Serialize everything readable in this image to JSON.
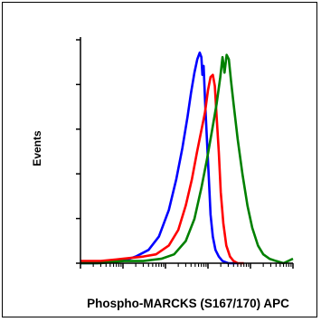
{
  "chart_data": {
    "type": "line",
    "title": "",
    "xlabel": "Phospho-MARCKS (S167/170) APC",
    "ylabel": "Events",
    "x_scale": "log",
    "xlim": [
      1,
      100000
    ],
    "ylim": [
      0,
      100
    ],
    "grid": false,
    "legend": "none",
    "series": [
      {
        "color": "#0000ff",
        "x": [
          1,
          2.5,
          5,
          10,
          20,
          40,
          70,
          120,
          180,
          250,
          330,
          400,
          480,
          560,
          640,
          700,
          740,
          790,
          860,
          950,
          1050,
          1150,
          1300,
          1500,
          1800,
          2200,
          3000,
          5000
        ],
        "y": [
          0,
          0,
          1,
          1,
          3,
          6,
          12,
          24,
          38,
          52,
          66,
          77,
          86,
          92,
          95,
          93,
          85,
          89,
          72,
          55,
          38,
          22,
          12,
          6,
          3,
          1,
          0,
          0
        ]
      },
      {
        "color": "#ff0000",
        "x": [
          1,
          3,
          10,
          30,
          60,
          120,
          200,
          300,
          420,
          550,
          700,
          850,
          1000,
          1150,
          1300,
          1450,
          1600,
          1800,
          2000,
          2300,
          2700,
          3300,
          4000,
          5000,
          7000
        ],
        "y": [
          1,
          1,
          2,
          3,
          4,
          8,
          15,
          26,
          38,
          50,
          60,
          68,
          78,
          84,
          85,
          80,
          66,
          50,
          32,
          18,
          8,
          3,
          1,
          0,
          0
        ]
      },
      {
        "color": "#008000",
        "x": [
          1,
          3,
          10,
          30,
          80,
          160,
          300,
          480,
          700,
          950,
          1250,
          1600,
          1950,
          2200,
          2450,
          2750,
          3100,
          3500,
          4000,
          5000,
          6500,
          8500,
          11000,
          15000,
          20000,
          28000,
          40000,
          60000,
          100000
        ],
        "y": [
          0,
          0,
          1,
          1,
          2,
          4,
          10,
          20,
          34,
          47,
          60,
          72,
          84,
          93,
          86,
          94,
          92,
          82,
          72,
          56,
          40,
          26,
          16,
          8,
          4,
          2,
          1,
          0,
          2
        ]
      }
    ]
  }
}
